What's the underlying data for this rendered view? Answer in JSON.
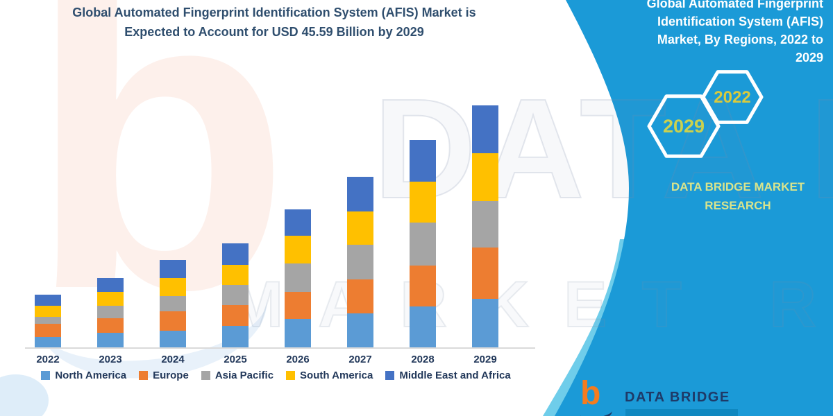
{
  "title": {
    "lines": [
      "Global Automated Fingerprint Identification System (AFIS) Market is",
      "Expected to Account for USD 45.59 Billion by 2029"
    ],
    "color": "#2F4E6E"
  },
  "side_panel": {
    "background_color": "#1B9AD7",
    "edge_highlight_color": "#6FCDEA",
    "heading_lines": [
      "Global Automated Fingerprint",
      "Identification System (AFIS)",
      "Market, By Regions, 2022 to",
      "2029"
    ],
    "heading_color": "#FFFFFF",
    "hexagons": [
      {
        "label": "2029",
        "label_color": "#CBD14E"
      },
      {
        "label": "2022",
        "label_color": "#D8CA3E"
      }
    ],
    "brand_lines": [
      "DATA BRIDGE MARKET",
      "RESEARCH"
    ],
    "brand_color": "#D9E48C"
  },
  "watermarks": {
    "big_letter": "b",
    "row1": "DATA BRIDGE",
    "row2": "MARKET RESEARCH"
  },
  "chart_data": {
    "type": "bar",
    "stacked": true,
    "title": "Global Automated Fingerprint Identification System (AFIS) Market is Expected to Account for USD 45.59 Billion by 2029",
    "unit": "USD Billion",
    "ylim": [
      0,
      46
    ],
    "grid": false,
    "legend_position": "bottom",
    "axis_label_color": "#22385A",
    "axis_line_color": "#DADADA",
    "categories": [
      "2022",
      "2023",
      "2024",
      "2025",
      "2026",
      "2027",
      "2028",
      "2029"
    ],
    "series": [
      {
        "name": "North America",
        "color": "#5B9BD5",
        "values": [
          1.9,
          2.7,
          3.1,
          4.1,
          5.3,
          6.4,
          7.7,
          9.1
        ]
      },
      {
        "name": "Europe",
        "color": "#ED7D31",
        "values": [
          2.5,
          2.8,
          3.7,
          3.9,
          5.2,
          6.4,
          7.7,
          9.7
        ]
      },
      {
        "name": "Asia Pacific",
        "color": "#A5A5A5",
        "values": [
          1.3,
          2.4,
          2.9,
          3.7,
          5.3,
          6.5,
          8.1,
          8.7
        ]
      },
      {
        "name": "South America",
        "color": "#FFC000",
        "values": [
          2.2,
          2.6,
          3.3,
          3.9,
          5.2,
          6.3,
          7.7,
          9.1
        ]
      },
      {
        "name": "Middle East and Africa",
        "color": "#4472C4",
        "values": [
          2.0,
          2.5,
          3.5,
          4.0,
          5.0,
          6.5,
          7.8,
          9.0
        ]
      }
    ],
    "yearly_totals": [
      9.9,
      13.0,
      16.5,
      19.6,
      26.0,
      32.1,
      39.0,
      45.59
    ],
    "annotations": {
      "forecast_total_2029": "USD 45.59 Billion"
    }
  },
  "footer_logo": {
    "b": "b",
    "text": "DATA BRIDGE",
    "b_color": "#F47C1F",
    "text_color": "#1E3A68",
    "bar_color": "#0F88C0"
  }
}
